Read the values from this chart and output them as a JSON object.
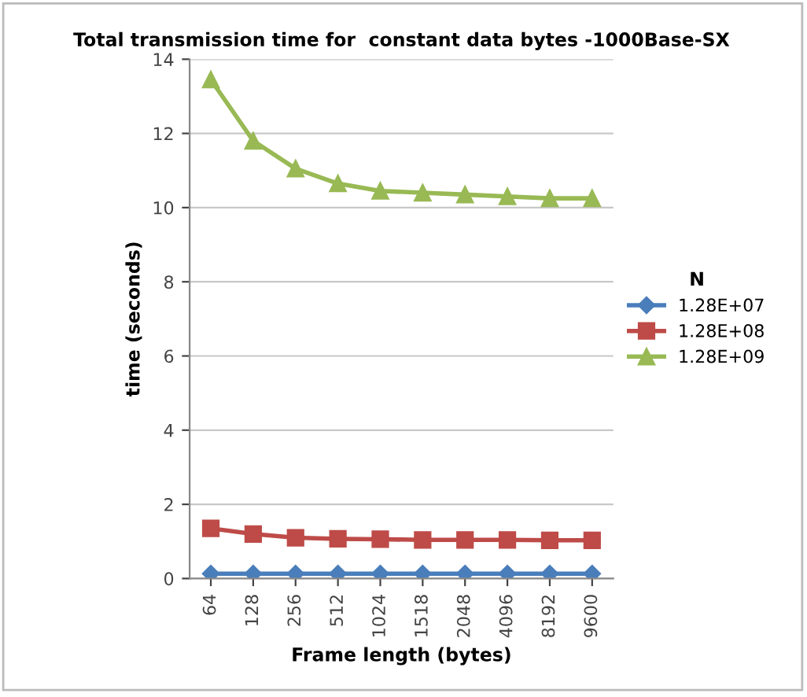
{
  "chart_data": {
    "type": "line",
    "title": "Total transmission time for  constant data bytes -1000Base-SX",
    "xlabel": "Frame length (bytes)",
    "ylabel": "time (seconds)",
    "legend_title": "N",
    "categories": [
      "64",
      "128",
      "256",
      "512",
      "1024",
      "1518",
      "2048",
      "4096",
      "8192",
      "9600"
    ],
    "series": [
      {
        "name": "1.28E+07",
        "color": "#4a7ebb",
        "marker": "diamond",
        "values": [
          0.13,
          0.13,
          0.13,
          0.13,
          0.13,
          0.13,
          0.13,
          0.13,
          0.13,
          0.13
        ]
      },
      {
        "name": "1.28E+08",
        "color": "#be4b48",
        "marker": "square",
        "values": [
          1.35,
          1.2,
          1.1,
          1.07,
          1.06,
          1.04,
          1.04,
          1.04,
          1.03,
          1.03
        ]
      },
      {
        "name": "1.28E+09",
        "color": "#98b954",
        "marker": "triangle",
        "values": [
          13.45,
          11.8,
          11.05,
          10.65,
          10.45,
          10.4,
          10.35,
          10.3,
          10.25,
          10.25
        ]
      }
    ],
    "ylim": [
      0,
      14
    ],
    "yticks": [
      0,
      2,
      4,
      6,
      8,
      10,
      12,
      14
    ],
    "grid": "y",
    "legend": "right",
    "line_style": "solid"
  }
}
